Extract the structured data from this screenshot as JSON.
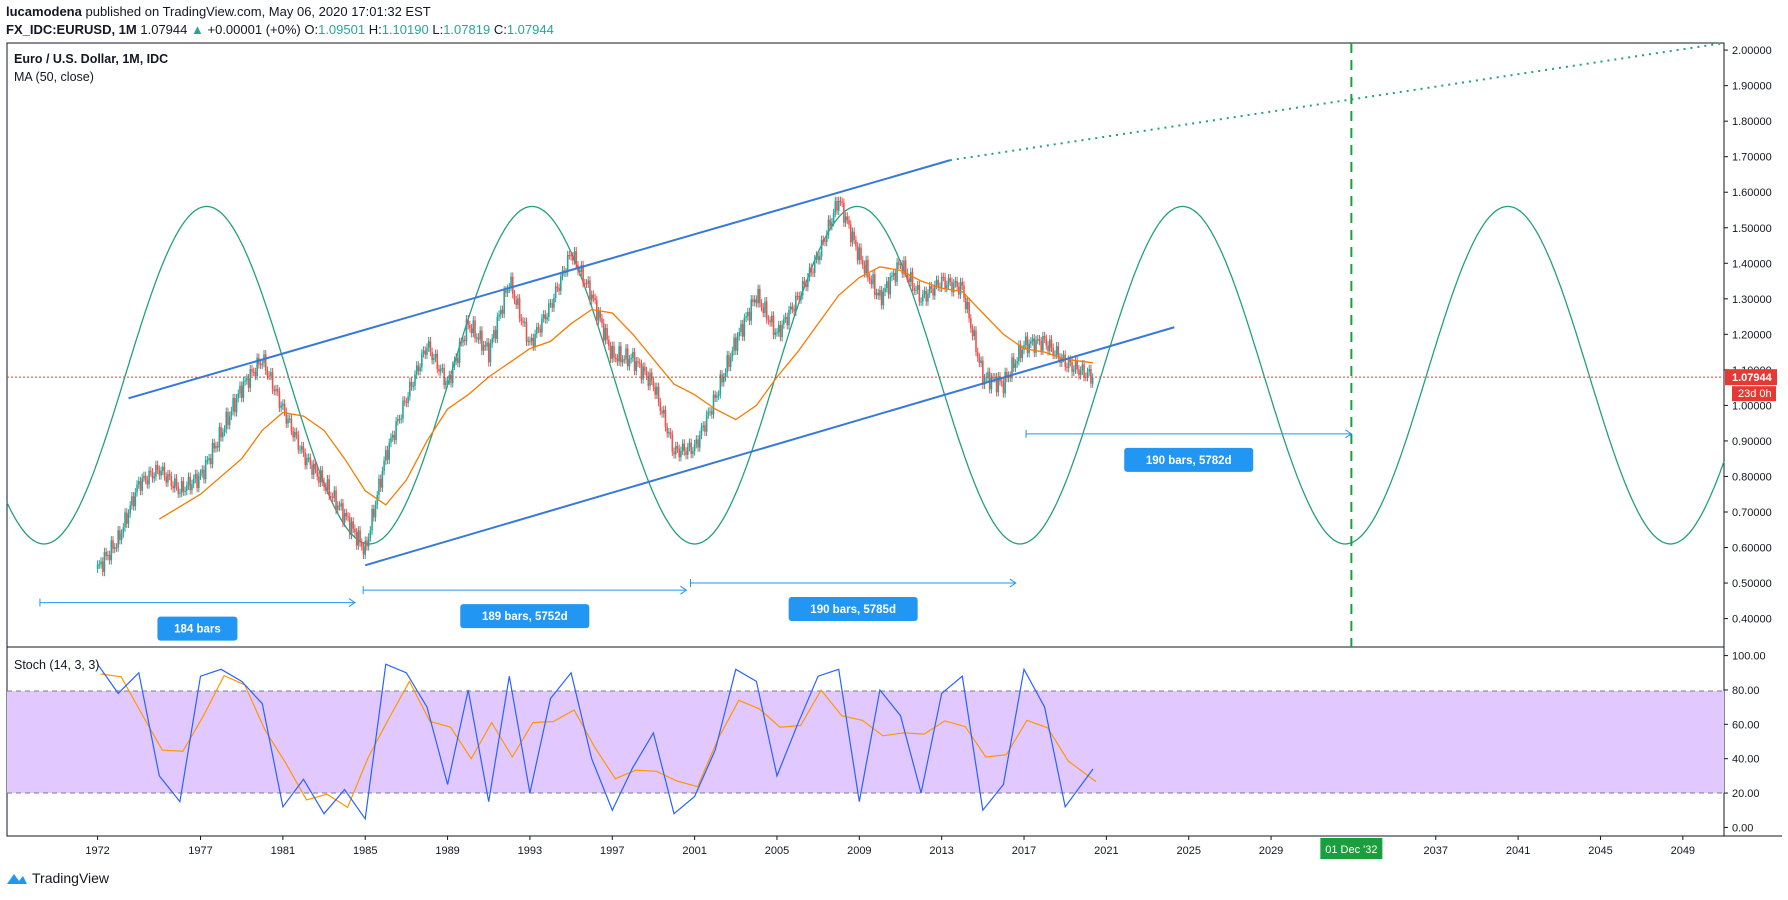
{
  "header": {
    "author": "lucamodena",
    "published": "published on TradingView.com, May 06, 2020 17:01:32 EST",
    "symbol": "FX_IDC:EURUSD, 1M",
    "last": "1.07944",
    "change_arrow": "▲",
    "change": "+0.00001 (+0%)",
    "o_label": "O:",
    "o": "1.09501",
    "h_label": "H:",
    "h": "1.10190",
    "l_label": "L:",
    "l": "1.07819",
    "c_label": "C:",
    "c": "1.07944"
  },
  "brand": {
    "name": "TradingView",
    "icon": "tradingview-logo-icon"
  },
  "chart_data": [
    {
      "type": "line",
      "title": "Euro / U.S. Dollar, 1M, IDC",
      "indicator": "MA (50, close)",
      "xlim": [
        1967.6,
        2051
      ],
      "ylim": [
        0.32,
        2.02
      ],
      "x_ticks": [
        "1972",
        "1977",
        "1981",
        "1985",
        "1989",
        "1993",
        "1997",
        "2001",
        "2005",
        "2009",
        "2013",
        "2017",
        "2021",
        "2025",
        "2029",
        "2037",
        "2041",
        "2045",
        "2049"
      ],
      "x_tick_values": [
        1972,
        1977,
        1981,
        1985,
        1989,
        1993,
        1997,
        2001,
        2005,
        2009,
        2013,
        2017,
        2021,
        2025,
        2029,
        2037,
        2041,
        2045,
        2049
      ],
      "y_ticks": [
        "2.00000",
        "1.90000",
        "1.80000",
        "1.70000",
        "1.60000",
        "1.50000",
        "1.40000",
        "1.30000",
        "1.20000",
        "1.10000",
        "1.00000",
        "0.90000",
        "0.80000",
        "0.70000",
        "0.60000",
        "0.50000",
        "0.40000"
      ],
      "y_tick_values": [
        2.0,
        1.9,
        1.8,
        1.7,
        1.6,
        1.5,
        1.4,
        1.3,
        1.2,
        1.1,
        1.0,
        0.9,
        0.8,
        0.7,
        0.6,
        0.5,
        0.4
      ],
      "price_points": [
        [
          1972,
          0.54
        ],
        [
          1973,
          0.62
        ],
        [
          1974,
          0.78
        ],
        [
          1975,
          0.82
        ],
        [
          1976,
          0.76
        ],
        [
          1977,
          0.8
        ],
        [
          1978,
          0.92
        ],
        [
          1979,
          1.05
        ],
        [
          1980,
          1.13
        ],
        [
          1981,
          0.99
        ],
        [
          1982,
          0.86
        ],
        [
          1983,
          0.78
        ],
        [
          1984,
          0.69
        ],
        [
          1985,
          0.59
        ],
        [
          1986,
          0.86
        ],
        [
          1987,
          1.02
        ],
        [
          1988,
          1.17
        ],
        [
          1989,
          1.06
        ],
        [
          1990,
          1.23
        ],
        [
          1991,
          1.15
        ],
        [
          1992,
          1.35
        ],
        [
          1993,
          1.17
        ],
        [
          1994,
          1.28
        ],
        [
          1995,
          1.43
        ],
        [
          1996,
          1.31
        ],
        [
          1997,
          1.14
        ],
        [
          1998,
          1.13
        ],
        [
          1999,
          1.06
        ],
        [
          2000,
          0.87
        ],
        [
          2001,
          0.88
        ],
        [
          2002,
          1.02
        ],
        [
          2003,
          1.18
        ],
        [
          2004,
          1.31
        ],
        [
          2005,
          1.2
        ],
        [
          2006,
          1.3
        ],
        [
          2007,
          1.42
        ],
        [
          2008,
          1.58
        ],
        [
          2009,
          1.42
        ],
        [
          2010,
          1.3
        ],
        [
          2011,
          1.4
        ],
        [
          2012,
          1.3
        ],
        [
          2013,
          1.35
        ],
        [
          2014,
          1.33
        ],
        [
          2015,
          1.08
        ],
        [
          2016,
          1.06
        ],
        [
          2017,
          1.17
        ],
        [
          2018,
          1.18
        ],
        [
          2019,
          1.12
        ],
        [
          2020.35,
          1.07944
        ]
      ],
      "ma_points": [
        [
          1975,
          0.68
        ],
        [
          1977,
          0.75
        ],
        [
          1979,
          0.85
        ],
        [
          1980,
          0.93
        ],
        [
          1981,
          0.98
        ],
        [
          1982,
          0.97
        ],
        [
          1983,
          0.93
        ],
        [
          1984,
          0.85
        ],
        [
          1985,
          0.76
        ],
        [
          1986,
          0.72
        ],
        [
          1987,
          0.79
        ],
        [
          1988,
          0.9
        ],
        [
          1989,
          0.99
        ],
        [
          1990,
          1.03
        ],
        [
          1991,
          1.08
        ],
        [
          1992,
          1.12
        ],
        [
          1993,
          1.16
        ],
        [
          1994,
          1.18
        ],
        [
          1995,
          1.23
        ],
        [
          1996,
          1.27
        ],
        [
          1997,
          1.26
        ],
        [
          1998,
          1.2
        ],
        [
          1999,
          1.13
        ],
        [
          2000,
          1.06
        ],
        [
          2001,
          1.03
        ],
        [
          2002,
          0.99
        ],
        [
          2003,
          0.96
        ],
        [
          2004,
          1.0
        ],
        [
          2005,
          1.08
        ],
        [
          2006,
          1.15
        ],
        [
          2007,
          1.23
        ],
        [
          2008,
          1.31
        ],
        [
          2009,
          1.36
        ],
        [
          2010,
          1.39
        ],
        [
          2011,
          1.38
        ],
        [
          2012,
          1.35
        ],
        [
          2013,
          1.33
        ],
        [
          2014,
          1.32
        ],
        [
          2015,
          1.26
        ],
        [
          2016,
          1.2
        ],
        [
          2017,
          1.16
        ],
        [
          2018,
          1.15
        ],
        [
          2019,
          1.13
        ],
        [
          2020.35,
          1.12
        ]
      ],
      "cycle": {
        "period_years": 15.8,
        "max": 1.56,
        "min": 0.61,
        "trough_year": 1969.4
      },
      "channel": {
        "upper": [
          [
            1973.5,
            1.02
          ],
          [
            2013.4,
            1.69
          ]
        ],
        "upper_extension": [
          [
            2013.4,
            1.69
          ],
          [
            2051,
            2.02
          ]
        ],
        "lower": [
          [
            1985,
            0.55
          ],
          [
            2024.3,
            1.22
          ]
        ]
      },
      "last_price_line": 1.07944,
      "last_price_label": "1.07944",
      "countdown_label": "23d 0h",
      "vertical_marker": {
        "x": 2032.9,
        "label": "01 Dec '32"
      },
      "measurements": [
        {
          "label": "184 bars",
          "from": 1969.2,
          "to": 1984.5,
          "y": 0.445
        },
        {
          "label": "189 bars, 5752d",
          "from": 1984.9,
          "to": 2000.6,
          "y": 0.48
        },
        {
          "label": "190 bars, 5785d",
          "from": 2000.8,
          "to": 2016.6,
          "y": 0.5
        },
        {
          "label": "190 bars, 5782d",
          "from": 2017.1,
          "to": 2032.9,
          "y": 0.92
        }
      ],
      "colors": {
        "price_up": "#26a69a",
        "price_down": "#ef5350",
        "ma": "#f57c00",
        "cycle": "#22a07e",
        "channel": "#3779d8",
        "price_line": "#e53935",
        "measure": "#2196f3",
        "marker": "#1b9e3e"
      }
    },
    {
      "type": "line",
      "title": "Stoch (14, 3, 3)",
      "ylim": [
        -5,
        105
      ],
      "y_ticks": [
        "100.00",
        "80.00",
        "60.00",
        "40.00",
        "20.00",
        "0.00"
      ],
      "y_tick_values": [
        100,
        80,
        60,
        40,
        20,
        0
      ],
      "band": [
        20,
        80
      ],
      "k_points": [
        [
          1972,
          95
        ],
        [
          1973,
          78
        ],
        [
          1974,
          90
        ],
        [
          1975,
          30
        ],
        [
          1976,
          15
        ],
        [
          1977,
          88
        ],
        [
          1978,
          92
        ],
        [
          1979,
          85
        ],
        [
          1980,
          72
        ],
        [
          1981,
          12
        ],
        [
          1982,
          28
        ],
        [
          1983,
          8
        ],
        [
          1984,
          22
        ],
        [
          1985,
          5
        ],
        [
          1986,
          95
        ],
        [
          1987,
          90
        ],
        [
          1988,
          70
        ],
        [
          1989,
          25
        ],
        [
          1990,
          80
        ],
        [
          1991,
          15
        ],
        [
          1992,
          88
        ],
        [
          1993,
          20
        ],
        [
          1994,
          75
        ],
        [
          1995,
          90
        ],
        [
          1996,
          40
        ],
        [
          1997,
          10
        ],
        [
          1998,
          35
        ],
        [
          1999,
          55
        ],
        [
          2000,
          8
        ],
        [
          2001,
          18
        ],
        [
          2002,
          45
        ],
        [
          2003,
          92
        ],
        [
          2004,
          85
        ],
        [
          2005,
          30
        ],
        [
          2006,
          60
        ],
        [
          2007,
          88
        ],
        [
          2008,
          92
        ],
        [
          2009,
          15
        ],
        [
          2010,
          80
        ],
        [
          2011,
          65
        ],
        [
          2012,
          20
        ],
        [
          2013,
          78
        ],
        [
          2014,
          88
        ],
        [
          2015,
          10
        ],
        [
          2016,
          25
        ],
        [
          2017,
          92
        ],
        [
          2018,
          70
        ],
        [
          2019,
          12
        ],
        [
          2020.35,
          34
        ]
      ],
      "colors": {
        "k": "#2962ff",
        "d": "#ff9800",
        "band": "#e1c8ff"
      }
    }
  ]
}
